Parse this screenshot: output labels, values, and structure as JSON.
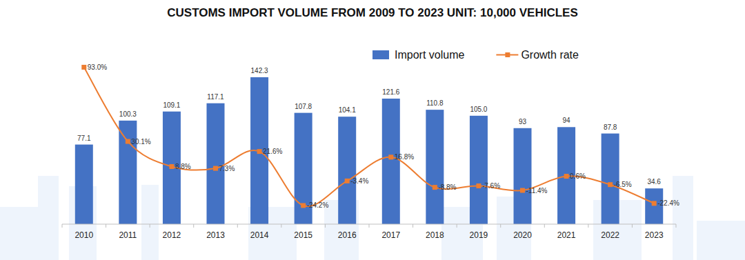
{
  "chart_data": {
    "type": "bar",
    "title": "CUSTOMS IMPORT VOLUME FROM 2009 TO 2023 UNIT: 10,000 VEHICLES",
    "categories": [
      "2010",
      "2011",
      "2012",
      "2013",
      "2014",
      "2015",
      "2016",
      "2017",
      "2018",
      "2019",
      "2020",
      "2021",
      "2022",
      "2023"
    ],
    "series": [
      {
        "name": "Import volume",
        "type": "bar",
        "color": "#4472c4",
        "values": [
          77.1,
          100.3,
          109.1,
          117.1,
          142.3,
          107.8,
          104.1,
          121.6,
          110.8,
          105.0,
          93,
          94,
          87.8,
          34.6
        ],
        "value_labels": [
          "77.1",
          "100.3",
          "109.1",
          "117.1",
          "142.3",
          "107.8",
          "104.1",
          "121.6",
          "110.8",
          "105.0",
          "93",
          "94",
          "87.8",
          "34.6"
        ]
      },
      {
        "name": "Growth rate",
        "type": "line",
        "color": "#ed7d31",
        "marker": "square",
        "axis": "y2",
        "values": [
          93.0,
          30.1,
          8.8,
          7.3,
          21.6,
          -24.2,
          -3.4,
          16.8,
          -8.8,
          -7.6,
          -11.4,
          0.6,
          -6.5,
          -22.4
        ],
        "value_labels": [
          "93.0%",
          "30.1%",
          "8.8%",
          "7.3%",
          "21.6%",
          "-24.2%",
          "-3.4%",
          "16.8%",
          "-8.8%",
          "-7.6%",
          "-11.4%",
          "0.6%",
          "-6.5%",
          "-22.4%"
        ]
      }
    ],
    "ylim": [
      0,
      160
    ],
    "y2lim": [
      -40,
      100
    ],
    "data_labels": true,
    "tick_labels": "x",
    "legend": "top"
  }
}
